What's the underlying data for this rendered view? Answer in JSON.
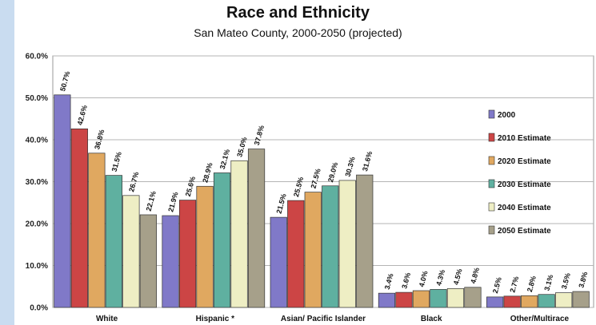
{
  "chart_data": {
    "type": "bar",
    "title": "Race and Ethnicity",
    "subtitle": "San Mateo County, 2000-2050 (projected)",
    "xlabel": "",
    "ylabel": "",
    "ylim": [
      0,
      60
    ],
    "yticks": [
      "0.0%",
      "10.0%",
      "20.0%",
      "30.0%",
      "40.0%",
      "50.0%",
      "60.0%"
    ],
    "grid": true,
    "legend_position": "right",
    "categories": [
      "White",
      "Hispanic *",
      "Asian/ Pacific Islander",
      "Black",
      "Other/Multirace"
    ],
    "series": [
      {
        "name": "2000",
        "color": "#8079c8",
        "values": [
          50.7,
          21.9,
          21.5,
          3.4,
          2.5
        ],
        "labels": [
          "50.7%",
          "21.9%",
          "21.5%",
          "3.4%",
          "2.5%"
        ]
      },
      {
        "name": "2010 Estimate",
        "color": "#cc4545",
        "values": [
          42.6,
          25.6,
          25.5,
          3.6,
          2.7
        ],
        "labels": [
          "42.6%",
          "25.6%",
          "25.5%",
          "3.6%",
          "2.7%"
        ]
      },
      {
        "name": "2020 Estimate",
        "color": "#e0a860",
        "values": [
          36.8,
          28.9,
          27.5,
          4.0,
          2.8
        ],
        "labels": [
          "36.8%",
          "28.9%",
          "27.5%",
          "4.0%",
          "2.8%"
        ]
      },
      {
        "name": "2030 Estimate",
        "color": "#5fb0a0",
        "values": [
          31.5,
          32.1,
          29.0,
          4.3,
          3.1
        ],
        "labels": [
          "31.5%",
          "32.1%",
          "29.0%",
          "4.3%",
          "3.1%"
        ]
      },
      {
        "name": "2040 Estimate",
        "color": "#eeeec4",
        "values": [
          26.7,
          35.0,
          30.3,
          4.5,
          3.5
        ],
        "labels": [
          "26.7%",
          "35.0%",
          "30.3%",
          "4.5%",
          "3.5%"
        ]
      },
      {
        "name": "2050 Estimate",
        "color": "#a6a08a",
        "values": [
          22.1,
          37.8,
          31.6,
          4.8,
          3.8
        ],
        "labels": [
          "22.1%",
          "37.8%",
          "31.6%",
          "4.8%",
          "3.8%"
        ]
      }
    ]
  }
}
